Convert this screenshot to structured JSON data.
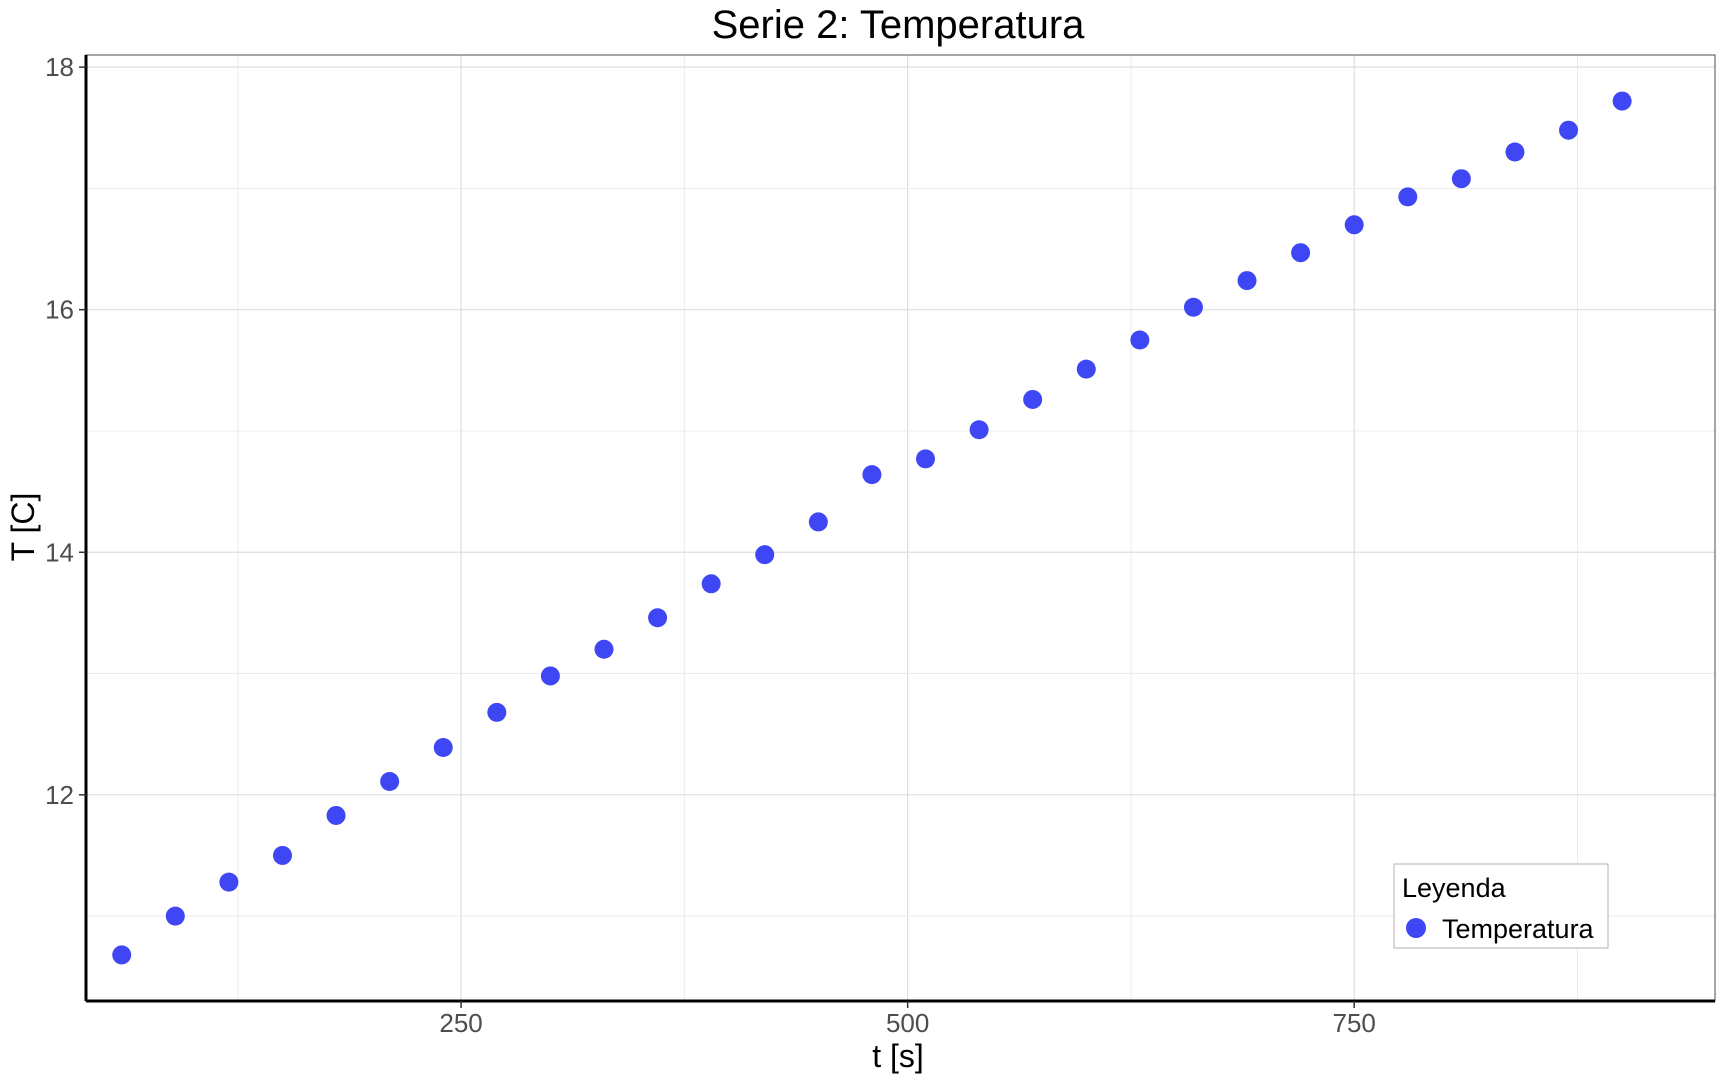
{
  "chart_data": {
    "type": "scatter",
    "title": "Serie 2: Temperatura",
    "xlabel": "t [s]",
    "ylabel": "T [C]",
    "xlim": [
      40,
      952
    ],
    "ylim": [
      10.3,
      18.1
    ],
    "x_ticks": [
      250,
      500,
      750
    ],
    "x_tick_labels": [
      "250",
      "500",
      "750"
    ],
    "y_ticks": [
      12,
      14,
      16,
      18
    ],
    "y_tick_labels": [
      "12",
      "14",
      "16",
      "18"
    ],
    "grid": true,
    "legend": {
      "title": "Leyenda",
      "placement": "bottom-right"
    },
    "series": [
      {
        "name": "Temperatura",
        "color": "#3f47f5",
        "x": [
          60,
          90,
          120,
          150,
          180,
          210,
          240,
          270,
          300,
          330,
          360,
          390,
          420,
          450,
          480,
          510,
          540,
          570,
          600,
          630,
          660,
          690,
          720,
          750,
          780,
          810,
          840,
          870,
          900
        ],
        "y": [
          10.68,
          11.0,
          11.28,
          11.5,
          11.83,
          12.11,
          12.39,
          12.68,
          12.98,
          13.2,
          13.46,
          13.74,
          13.98,
          14.25,
          14.64,
          14.77,
          15.01,
          15.26,
          15.51,
          15.75,
          16.02,
          16.24,
          16.47,
          16.7,
          16.93,
          17.08,
          17.3,
          17.48,
          17.72
        ]
      }
    ]
  }
}
